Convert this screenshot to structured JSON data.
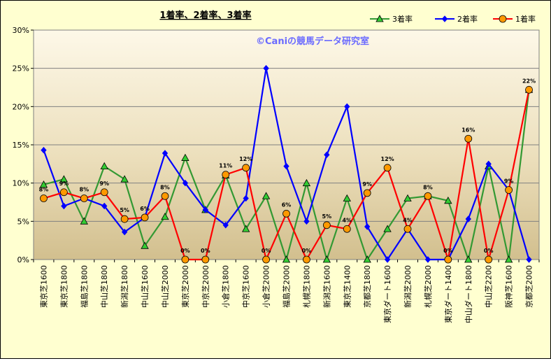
{
  "chart_data": {
    "type": "line",
    "title": "1着率、2着率、3着率",
    "watermark": "©Caniの競馬データ研究室",
    "ylim": [
      0,
      30
    ],
    "yticks": [
      "0%",
      "5%",
      "10%",
      "15%",
      "20%",
      "25%",
      "30%"
    ],
    "ytick_values": [
      0,
      5,
      10,
      15,
      20,
      25,
      30
    ],
    "grid": "horizontal",
    "legend_position": "top-right",
    "categories": [
      "東京芝1600",
      "東京芝1800",
      "福島芝1800",
      "中山芝1800",
      "新潟芝1800",
      "中山芝1600",
      "中山芝2000",
      "東京芝2000",
      "中京芝2000",
      "小倉芝1800",
      "中京芝1600",
      "小倉芝2000",
      "福島芝2000",
      "札幌芝1800",
      "新潟芝1600",
      "東京芝1400",
      "京都芝1800",
      "東京ダート1600",
      "新潟芝2000",
      "札幌芝2000",
      "東京ダート1400",
      "中山ダート1800",
      "中山芝2200",
      "阪神芝1600",
      "京都芝2000"
    ],
    "series": [
      {
        "name": "3着率",
        "color": "#339933",
        "marker": "triangle",
        "marker_fill": "#33cc33",
        "values": [
          9.8,
          10.5,
          5.0,
          12.2,
          10.5,
          1.8,
          5.6,
          13.3,
          6.5,
          11.0,
          4.0,
          8.3,
          0,
          10.0,
          0,
          8.0,
          0,
          4.0,
          8.0,
          8.3,
          7.7,
          0,
          12.2,
          0,
          22.2
        ]
      },
      {
        "name": "2着率",
        "color": "#0000ff",
        "marker": "diamond",
        "marker_fill": "#0000ff",
        "values": [
          14.3,
          7.0,
          8.0,
          7.0,
          3.6,
          5.5,
          13.9,
          10.0,
          6.5,
          4.5,
          8.0,
          25.0,
          12.2,
          5.0,
          13.7,
          20.0,
          4.3,
          0,
          4.0,
          0,
          0,
          5.3,
          12.5,
          9.1,
          0
        ]
      },
      {
        "name": "1着率",
        "color": "#ff0000",
        "marker": "circle",
        "marker_fill": "#ff9900",
        "values": [
          8.0,
          8.8,
          8.0,
          8.8,
          5.3,
          5.5,
          8.3,
          0,
          0,
          11.1,
          12.0,
          0,
          6.0,
          0,
          4.5,
          4.0,
          8.7,
          12.0,
          4.0,
          8.3,
          0,
          15.8,
          0,
          9.1,
          22.2
        ],
        "data_labels": [
          "8%",
          "9%",
          "8%",
          "9%",
          "5%",
          "6%",
          "8%",
          "0%",
          "0%",
          "11%",
          "12%",
          "0%",
          "6%",
          "0%",
          "5%",
          "4%",
          "9%",
          "12%",
          "4%",
          "8%",
          "0%",
          "16%",
          "0%",
          "9%",
          "22%"
        ]
      }
    ]
  }
}
